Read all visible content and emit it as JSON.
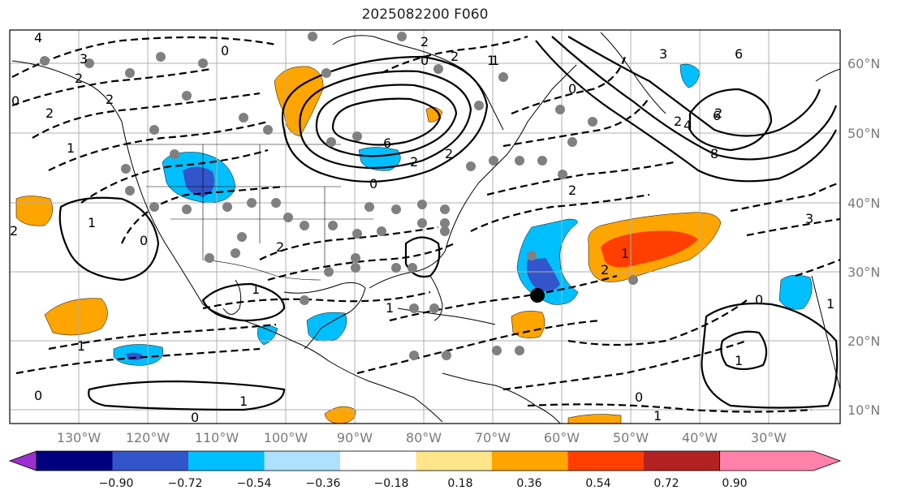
{
  "title": "2025082200 F060",
  "map": {
    "lon_labels": [
      "130°W",
      "120°W",
      "110°W",
      "100°W",
      "90°W",
      "80°W",
      "70°W",
      "60°W",
      "50°W",
      "40°W",
      "30°W"
    ],
    "lat_labels": [
      "60°N",
      "50°N",
      "40°N",
      "30°N",
      "20°N",
      "10°N"
    ],
    "contour_labels": [
      "4",
      "3",
      "2",
      "2",
      "0",
      "0",
      "2",
      "1",
      "0",
      "1",
      "2",
      "2",
      "0",
      "6",
      "2",
      "2",
      "2",
      "1",
      "0",
      "3",
      "6",
      "2",
      "2",
      "4",
      "6",
      "8",
      "2",
      "2",
      "1",
      "1",
      "2",
      "3",
      "0",
      "1",
      "1",
      "1",
      "1",
      "0",
      "1",
      "0",
      "0",
      "1",
      "0",
      "1"
    ]
  },
  "colorbar": {
    "ticks": [
      "−0.90",
      "−0.72",
      "−0.54",
      "−0.36",
      "−0.18",
      "0.18",
      "0.36",
      "0.54",
      "0.72",
      "0.90"
    ],
    "colors": [
      "#9b30d0",
      "#00007f",
      "#3355cc",
      "#00bfff",
      "#aee0ff",
      "#ffffff",
      "#ffe58a",
      "#ffa500",
      "#ff3f00",
      "#b22222",
      "#ff82ab"
    ]
  },
  "colors": {
    "grid": "#b0b0b0",
    "coast": "#000000",
    "station": "#808080"
  }
}
